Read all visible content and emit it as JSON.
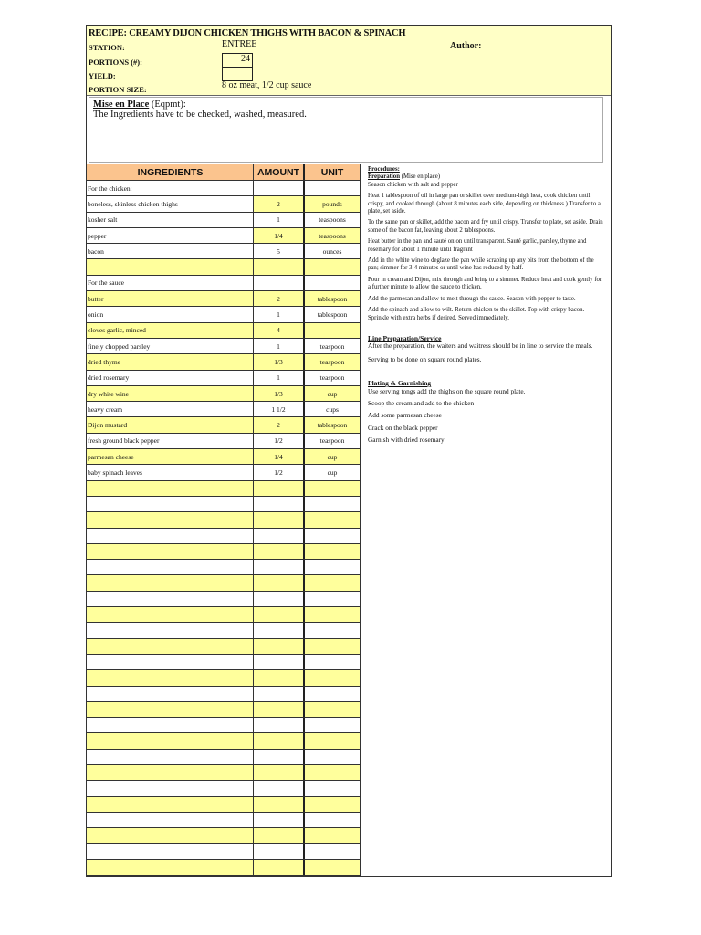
{
  "header": {
    "title": "RECIPE: CREAMY DIJON CHICKEN THIGHS WITH BACON & SPINACH",
    "station_label": "STATION:",
    "station": "ENTREE",
    "portions_label": "PORTIONS (#):",
    "portions": "24",
    "yield_label": "YIELD:",
    "yield": "",
    "portion_size_label": "PORTION SIZE:",
    "portion_size": "8 oz meat, 1/2 cup sauce",
    "author_label": "Author:"
  },
  "mise": {
    "title": "Mise en Place",
    "subtitle": " (Eqpmt):",
    "text": "The Ingredients have to be checked, washed, measured."
  },
  "table": {
    "headers": [
      "INGREDIENTS",
      "AMOUNT",
      "UNIT"
    ],
    "rows": [
      {
        "name": "For the chicken:",
        "amount": "",
        "unit": ""
      },
      {
        "name": "boneless, skinless chicken thighs",
        "amount": "2",
        "unit": "pounds"
      },
      {
        "name": "kosher salt",
        "amount": "1",
        "unit": "teaspoons"
      },
      {
        "name": "pepper",
        "amount": "1/4",
        "unit": "teaspoons"
      },
      {
        "name": "bacon",
        "amount": "5",
        "unit": "ounces"
      },
      {
        "name": "",
        "amount": "",
        "unit": ""
      },
      {
        "name": "For the sauce",
        "amount": "",
        "unit": ""
      },
      {
        "name": "butter",
        "amount": "2",
        "unit": "tablespoon"
      },
      {
        "name": "onion",
        "amount": "1",
        "unit": "tablespoon"
      },
      {
        "name": "cloves garlic, minced",
        "amount": "4",
        "unit": ""
      },
      {
        "name": "finely chopped parsley",
        "amount": "1",
        "unit": "teaspoon"
      },
      {
        "name": "dried thyme",
        "amount": "1/3",
        "unit": "teaspoon"
      },
      {
        "name": "dried rosemary",
        "amount": "1",
        "unit": "teaspoon"
      },
      {
        "name": "dry white wine",
        "amount": "1/3",
        "unit": "cup"
      },
      {
        "name": "heavy cream",
        "amount": "1 1/2",
        "unit": "cups"
      },
      {
        "name": "Dijon mustard",
        "amount": "2",
        "unit": "tablespoon"
      },
      {
        "name": "fresh ground black pepper",
        "amount": "1/2",
        "unit": "teaspoon"
      },
      {
        "name": "parmesan cheese",
        "amount": "1/4",
        "unit": "cup"
      },
      {
        "name": "baby spinach leaves",
        "amount": "1/2",
        "unit": "cup"
      }
    ]
  },
  "procedures": {
    "title": "Procedures:",
    "prep_title": "Preparation",
    "prep_sub": " (Mise en place)",
    "steps": [
      "Season chicken with salt and pepper",
      "Heat 1 tablespoon of oil in large pan or skillet over medium-high heat, cook chicken until crispy, and cooked through (about 8 minutes each side, depending on thickness.) Transfer to a plate, set aside.",
      "To the same pan or skillet, add the bacon and fry until crispy. Transfer to plate, set aside. Drain some of the bacon fat, leaving about 2 tablespoons.",
      "Heat butter in the pan and sauté onion until transparent. Sauté garlic, parsley, thyme and rosemary for about 1 minute until fragrant",
      "Add in the white wine to deglaze the pan while scraping up any bits from the bottom of the pan; simmer for 3-4 minutes or until wine has reduced by half.",
      "Pour in cream and Dijon, mix through and bring to a simmer. Reduce heat and cook gently for a further minute to allow the sauce to thicken.",
      "Add the parmesan and allow to melt through the sauce. Season with pepper to taste.",
      "Add the spinach and allow to wilt. Return chicken to the skillet. Top with crispy bacon. Sprinkle with extra herbs if desired. Served immediately."
    ],
    "line_title": "Line Preparation/Service",
    "line": [
      " After the preparation, the waiters and waitress should be in line to service the meals.",
      "Serving to be done on square round plates."
    ],
    "plating_title": "Plating & Garnishing",
    "plating": [
      "Use serving tongs add the thighs on the square round plate.",
      "Scoop the cream and add to the chicken",
      "Add some parmesan cheese",
      "Crack on the black pepper",
      "Garnish with dried rosemary"
    ]
  }
}
